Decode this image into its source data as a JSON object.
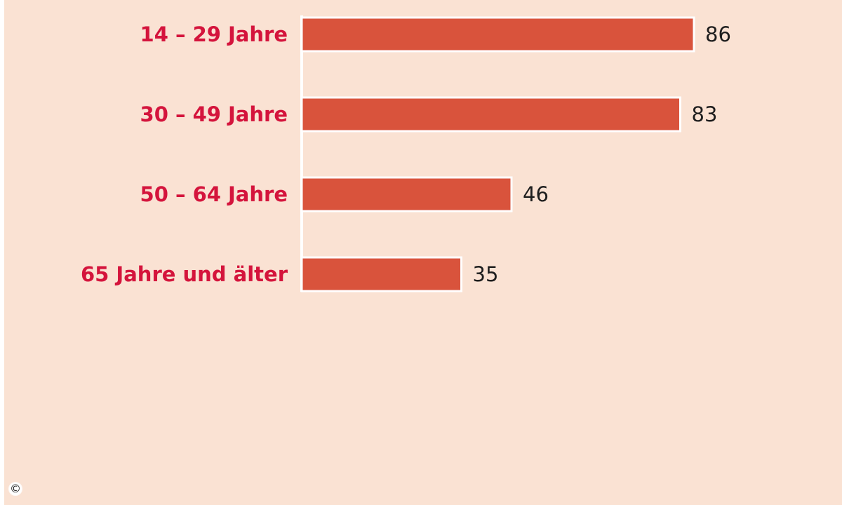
{
  "chart_data": {
    "type": "bar",
    "orientation": "horizontal",
    "categories": [
      "14 – 29 Jahre",
      "30 – 49 Jahre",
      "50 – 64 Jahre",
      "65 Jahre und älter"
    ],
    "values": [
      86,
      83,
      46,
      35
    ],
    "value_labels": [
      "86",
      "83",
      "46",
      "35"
    ],
    "title": "",
    "xlabel": "",
    "ylabel": "",
    "xlim": [
      0,
      100
    ],
    "grid": false,
    "legend": "none"
  },
  "colors": {
    "background": "#fae2d3",
    "bar": "#d9533c",
    "bar_outline": "#ffffff",
    "category_text": "#d4143c",
    "value_text": "#1e1e1e"
  },
  "footer": {
    "copyright_symbol": "©"
  }
}
